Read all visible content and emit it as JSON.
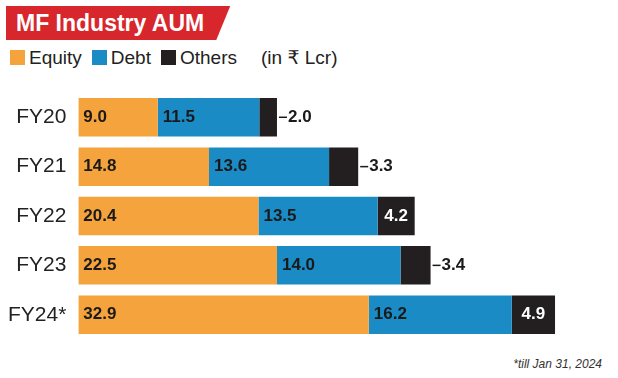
{
  "chart_data": {
    "type": "bar",
    "orientation": "horizontal",
    "stacked": true,
    "title": "MF Industry AUM",
    "subtitle": "(in ₹ Lcr)",
    "annotations": [
      "*till Jan 31, 2024"
    ],
    "categories": [
      "FY20",
      "FY21",
      "FY22",
      "FY23",
      "FY24*"
    ],
    "series": [
      {
        "name": "Equity",
        "color": "#f5a33c",
        "values": [
          9.0,
          14.8,
          20.4,
          22.5,
          32.9
        ],
        "value_labels": [
          "9.0",
          "14.8",
          "20.4",
          "22.5",
          "32.9"
        ]
      },
      {
        "name": "Debt",
        "color": "#1b8bc6",
        "values": [
          11.5,
          13.6,
          13.5,
          14.0,
          16.2
        ],
        "value_labels": [
          "11.5",
          "13.6",
          "13.5",
          "14.0",
          "16.2"
        ]
      },
      {
        "name": "Others",
        "color": "#231f20",
        "values": [
          2.0,
          3.3,
          4.2,
          3.4,
          4.9
        ],
        "value_labels": [
          "2.0",
          "3.3",
          "4.2",
          "3.4",
          "4.9"
        ]
      }
    ],
    "xlim": [
      0,
      60
    ],
    "tick_labels": "y",
    "grid": false,
    "legend": "top",
    "data_labels": true
  }
}
